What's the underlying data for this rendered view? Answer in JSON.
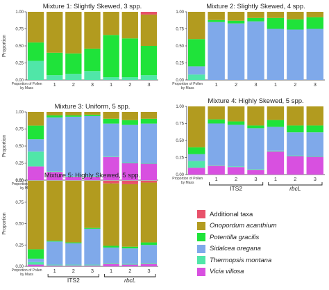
{
  "colors": {
    "Additional taxa": "#e8516a",
    "Onopordum acanthium": "#b29b1f",
    "Potentilla gracilis": "#1fe33a",
    "Sidalcea oregana": "#7fa9ea",
    "Thermopsis montana": "#50e6a8",
    "Vicia villosa": "#d850e0"
  },
  "legend": {
    "items": [
      {
        "label": "Additional taxa",
        "taxon": "Additional taxa"
      },
      {
        "label": "Onopordum acanthium",
        "taxon": "Onopordum acanthium"
      },
      {
        "label": "Potentilla gracilis",
        "taxon": "Potentilla gracilis"
      },
      {
        "label": "Sidalcea oregana",
        "taxon": "Sidalcea oregana"
      },
      {
        "label": "Thermopsis montana",
        "taxon": "Thermopsis montana"
      },
      {
        "label": "Vicia villosa",
        "taxon": "Vicia villosa"
      }
    ]
  },
  "chart_data": [
    {
      "type": "bar",
      "title": "Mixture 1: Slightly Skewed, 3 spp.",
      "ylabel": "Proportion",
      "ylim": [
        0,
        1
      ],
      "yticks": [
        0.0,
        0.25,
        0.5,
        0.75,
        1.0
      ],
      "ytick_labels": [
        "0.00",
        "0.25",
        "0.50",
        "0.75",
        "1.00"
      ],
      "first_label": "Proportion of Pollen by Mass",
      "categories": [
        "Proportion of Pollen by Mass",
        "1",
        "2",
        "3",
        "1",
        "2",
        "3"
      ],
      "groups": [],
      "stack_order": [
        "Vicia villosa",
        "Thermopsis montana",
        "Sidalcea oregana",
        "Potentilla gracilis",
        "Onopordum acanthium",
        "Additional taxa"
      ],
      "series": [
        {
          "name": "Vicia villosa",
          "values": [
            0,
            0,
            0,
            0,
            0,
            0,
            0
          ]
        },
        {
          "name": "Thermopsis montana",
          "values": [
            0.28,
            0.07,
            0.09,
            0.13,
            0.04,
            0.04,
            0.07
          ]
        },
        {
          "name": "Sidalcea oregana",
          "values": [
            0,
            0,
            0,
            0,
            0,
            0,
            0
          ]
        },
        {
          "name": "Potentilla gracilis",
          "values": [
            0.27,
            0.33,
            0.3,
            0.33,
            0.62,
            0.57,
            0.43
          ]
        },
        {
          "name": "Onopordum acanthium",
          "values": [
            0.45,
            0.6,
            0.61,
            0.54,
            0.34,
            0.39,
            0.46
          ]
        },
        {
          "name": "Additional taxa",
          "values": [
            0,
            0,
            0,
            0,
            0,
            0,
            0.04
          ]
        }
      ]
    },
    {
      "type": "bar",
      "title": "Mixture 2: Slightly Skewed, 4 spp.",
      "ylabel": "",
      "ylim": [
        0,
        1
      ],
      "yticks": [
        0.0,
        0.25,
        0.5,
        0.75,
        1.0
      ],
      "ytick_labels": [
        "0.00",
        "0.25",
        "0.50",
        "0.75",
        "1.00"
      ],
      "first_label": "Proportion of Pollen by Mass",
      "categories": [
        "Proportion of Pollen by Mass",
        "1",
        "2",
        "3",
        "1",
        "2",
        "3"
      ],
      "groups": [],
      "stack_order": [
        "Vicia villosa",
        "Thermopsis montana",
        "Sidalcea oregana",
        "Potentilla gracilis",
        "Onopordum acanthium",
        "Additional taxa"
      ],
      "series": [
        {
          "name": "Vicia villosa",
          "values": [
            0,
            0,
            0,
            0,
            0,
            0,
            0
          ]
        },
        {
          "name": "Thermopsis montana",
          "values": [
            0.08,
            0,
            0,
            0,
            0,
            0,
            0
          ]
        },
        {
          "name": "Sidalcea oregana",
          "values": [
            0.12,
            0.85,
            0.83,
            0.86,
            0.75,
            0.74,
            0.75
          ]
        },
        {
          "name": "Potentilla gracilis",
          "values": [
            0.4,
            0.03,
            0.04,
            0.05,
            0.16,
            0.15,
            0.17
          ]
        },
        {
          "name": "Onopordum acanthium",
          "values": [
            0.4,
            0.12,
            0.13,
            0.09,
            0.09,
            0.11,
            0.08
          ]
        },
        {
          "name": "Additional taxa",
          "values": [
            0,
            0,
            0,
            0,
            0,
            0,
            0
          ]
        }
      ]
    },
    {
      "type": "bar",
      "title": "Mixture 3: Uniform, 5 spp.",
      "ylabel": "Proportion",
      "ylim": [
        0,
        1
      ],
      "yticks": [
        0.0,
        0.25,
        0.5,
        0.75,
        1.0
      ],
      "ytick_labels": [
        "0.00",
        "0.25",
        "0.50",
        "0.75",
        "1.00"
      ],
      "first_label": "Proportion of Pollen by Mass",
      "categories": [
        "Proportion of Pollen by Mass",
        "1",
        "2",
        "3",
        "1",
        "2",
        "3"
      ],
      "groups": [],
      "stack_order": [
        "Vicia villosa",
        "Thermopsis montana",
        "Sidalcea oregana",
        "Potentilla gracilis",
        "Onopordum acanthium",
        "Additional taxa"
      ],
      "series": [
        {
          "name": "Vicia villosa",
          "values": [
            0.2,
            0.12,
            0.05,
            0.05,
            0.34,
            0.25,
            0.24
          ]
        },
        {
          "name": "Thermopsis montana",
          "values": [
            0.22,
            0.01,
            0.01,
            0.01,
            0.01,
            0.01,
            0.01
          ]
        },
        {
          "name": "Sidalcea oregana",
          "values": [
            0.18,
            0.79,
            0.87,
            0.88,
            0.48,
            0.55,
            0.58
          ]
        },
        {
          "name": "Potentilla gracilis",
          "values": [
            0.2,
            0.03,
            0.02,
            0.02,
            0.07,
            0.07,
            0.07
          ]
        },
        {
          "name": "Onopordum acanthium",
          "values": [
            0.2,
            0.05,
            0.05,
            0.04,
            0.1,
            0.12,
            0.1
          ]
        },
        {
          "name": "Additional taxa",
          "values": [
            0,
            0,
            0,
            0,
            0,
            0,
            0
          ]
        }
      ]
    },
    {
      "type": "bar",
      "title": "Mixture 4: Highly Skewed, 5 spp.",
      "ylabel": "",
      "ylim": [
        0,
        1
      ],
      "yticks": [
        0.0,
        0.25,
        0.5,
        0.75,
        1.0
      ],
      "ytick_labels": [
        "0.00",
        "0.25",
        "0.50",
        "0.75",
        "1.00"
      ],
      "first_label": "Proportion of Pollen by Mass",
      "categories": [
        "Proportion of Pollen by Mass",
        "1",
        "2",
        "3",
        "1",
        "2",
        "3"
      ],
      "groups": [
        "ITS2",
        "rbcL"
      ],
      "stack_order": [
        "Vicia villosa",
        "Thermopsis montana",
        "Sidalcea oregana",
        "Potentilla gracilis",
        "Onopordum acanthium",
        "Additional taxa"
      ],
      "series": [
        {
          "name": "Vicia villosa",
          "values": [
            0.1,
            0.13,
            0.11,
            0.07,
            0.34,
            0.27,
            0.26
          ]
        },
        {
          "name": "Thermopsis montana",
          "values": [
            0.1,
            0.01,
            0.01,
            0.01,
            0.01,
            0.01,
            0.01
          ]
        },
        {
          "name": "Sidalcea oregana",
          "values": [
            0.1,
            0.61,
            0.61,
            0.6,
            0.35,
            0.34,
            0.35
          ]
        },
        {
          "name": "Potentilla gracilis",
          "values": [
            0.1,
            0.06,
            0.05,
            0.04,
            0.1,
            0.1,
            0.1
          ]
        },
        {
          "name": "Onopordum acanthium",
          "values": [
            0.6,
            0.19,
            0.22,
            0.28,
            0.2,
            0.28,
            0.28
          ]
        },
        {
          "name": "Additional taxa",
          "values": [
            0,
            0,
            0,
            0,
            0,
            0,
            0
          ]
        }
      ]
    },
    {
      "type": "bar",
      "title": "Mixture 5: Highly Skewed, 5 spp.",
      "ylabel": "Proportion",
      "ylim": [
        0,
        1
      ],
      "yticks": [
        0.0,
        0.25,
        0.5,
        0.75,
        1.0
      ],
      "ytick_labels": [
        "0.00",
        "0.25",
        "0.50",
        "0.75",
        "1.00"
      ],
      "first_label": "Proportion of Pollen by Mass",
      "categories": [
        "Proportion of Pollen by Mass",
        "1",
        "2",
        "3",
        "1",
        "2",
        "3"
      ],
      "groups": [
        "ITS2",
        "rbcL"
      ],
      "stack_order": [
        "Vicia villosa",
        "Thermopsis montana",
        "Sidalcea oregana",
        "Potentilla gracilis",
        "Onopordum acanthium",
        "Additional taxa"
      ],
      "series": [
        {
          "name": "Vicia villosa",
          "values": [
            0.02,
            0.01,
            0.01,
            0.01,
            0.03,
            0.02,
            0.03
          ]
        },
        {
          "name": "Thermopsis montana",
          "values": [
            0.03,
            0.01,
            0.01,
            0.01,
            0.01,
            0.01,
            0.01
          ]
        },
        {
          "name": "Sidalcea oregana",
          "values": [
            0.04,
            0.27,
            0.25,
            0.42,
            0.18,
            0.18,
            0.21
          ]
        },
        {
          "name": "Potentilla gracilis",
          "values": [
            0.11,
            0.01,
            0.01,
            0.01,
            0.02,
            0.02,
            0.03
          ]
        },
        {
          "name": "Onopordum acanthium",
          "values": [
            0.8,
            0.7,
            0.72,
            0.55,
            0.73,
            0.73,
            0.7
          ]
        },
        {
          "name": "Additional taxa",
          "values": [
            0,
            0,
            0,
            0,
            0.03,
            0.04,
            0.02
          ]
        }
      ]
    }
  ]
}
